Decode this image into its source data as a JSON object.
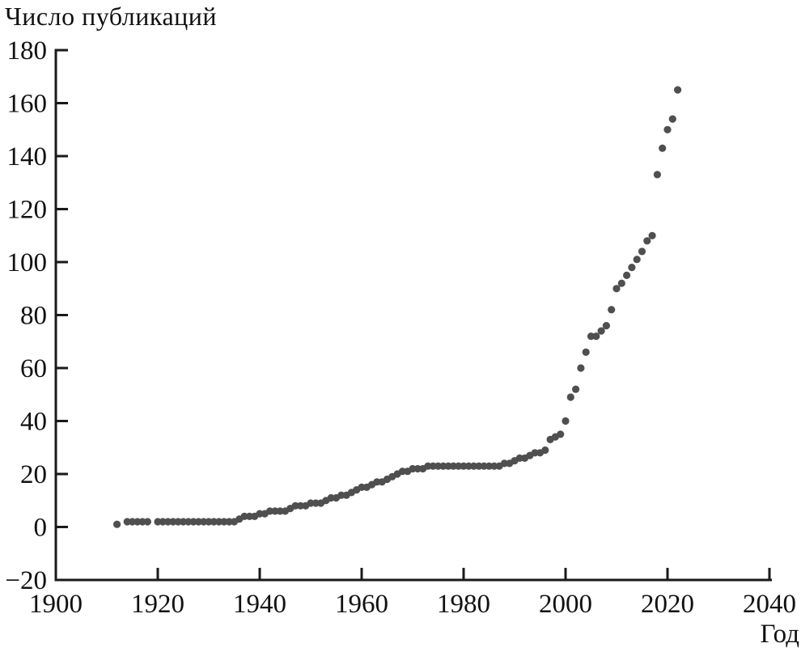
{
  "page": {
    "background": "#ffffff"
  },
  "chart_data": {
    "type": "scatter",
    "title": "Число публикаций",
    "xlabel": "Год",
    "ylabel": "Число публикаций",
    "xlim": [
      1900,
      2040
    ],
    "ylim": [
      -20,
      180
    ],
    "x_ticks": [
      1900,
      1920,
      1940,
      1960,
      1980,
      2000,
      2020,
      2040
    ],
    "y_ticks": [
      -20,
      0,
      20,
      40,
      60,
      80,
      100,
      120,
      140,
      160,
      180
    ],
    "grid": false,
    "legend": null,
    "marker_color": "#4f4f4f",
    "axis_color": "#1a1a1a",
    "points": [
      [
        1912,
        1
      ],
      [
        1914,
        2
      ],
      [
        1915,
        2
      ],
      [
        1916,
        2
      ],
      [
        1917,
        2
      ],
      [
        1918,
        2
      ],
      [
        1920,
        2
      ],
      [
        1921,
        2
      ],
      [
        1922,
        2
      ],
      [
        1923,
        2
      ],
      [
        1924,
        2
      ],
      [
        1925,
        2
      ],
      [
        1926,
        2
      ],
      [
        1927,
        2
      ],
      [
        1928,
        2
      ],
      [
        1929,
        2
      ],
      [
        1930,
        2
      ],
      [
        1931,
        2
      ],
      [
        1932,
        2
      ],
      [
        1933,
        2
      ],
      [
        1934,
        2
      ],
      [
        1935,
        2
      ],
      [
        1936,
        3
      ],
      [
        1937,
        4
      ],
      [
        1938,
        4
      ],
      [
        1939,
        4
      ],
      [
        1940,
        5
      ],
      [
        1941,
        5
      ],
      [
        1942,
        6
      ],
      [
        1943,
        6
      ],
      [
        1944,
        6
      ],
      [
        1945,
        6
      ],
      [
        1946,
        7
      ],
      [
        1947,
        8
      ],
      [
        1948,
        8
      ],
      [
        1949,
        8
      ],
      [
        1950,
        9
      ],
      [
        1951,
        9
      ],
      [
        1952,
        9
      ],
      [
        1953,
        10
      ],
      [
        1954,
        11
      ],
      [
        1955,
        11
      ],
      [
        1956,
        12
      ],
      [
        1957,
        12
      ],
      [
        1958,
        13
      ],
      [
        1959,
        14
      ],
      [
        1960,
        15
      ],
      [
        1961,
        15
      ],
      [
        1962,
        16
      ],
      [
        1963,
        17
      ],
      [
        1964,
        17
      ],
      [
        1965,
        18
      ],
      [
        1966,
        19
      ],
      [
        1967,
        20
      ],
      [
        1968,
        21
      ],
      [
        1969,
        21
      ],
      [
        1970,
        22
      ],
      [
        1971,
        22
      ],
      [
        1972,
        22
      ],
      [
        1973,
        23
      ],
      [
        1974,
        23
      ],
      [
        1975,
        23
      ],
      [
        1976,
        23
      ],
      [
        1977,
        23
      ],
      [
        1978,
        23
      ],
      [
        1979,
        23
      ],
      [
        1980,
        23
      ],
      [
        1981,
        23
      ],
      [
        1982,
        23
      ],
      [
        1983,
        23
      ],
      [
        1984,
        23
      ],
      [
        1985,
        23
      ],
      [
        1986,
        23
      ],
      [
        1987,
        23
      ],
      [
        1988,
        24
      ],
      [
        1989,
        24
      ],
      [
        1990,
        25
      ],
      [
        1991,
        26
      ],
      [
        1992,
        26
      ],
      [
        1993,
        27
      ],
      [
        1994,
        28
      ],
      [
        1995,
        28
      ],
      [
        1996,
        29
      ],
      [
        1997,
        33
      ],
      [
        1998,
        34
      ],
      [
        1999,
        35
      ],
      [
        2000,
        40
      ],
      [
        2001,
        49
      ],
      [
        2002,
        52
      ],
      [
        2003,
        60
      ],
      [
        2004,
        66
      ],
      [
        2005,
        72
      ],
      [
        2006,
        72
      ],
      [
        2007,
        74
      ],
      [
        2008,
        76
      ],
      [
        2009,
        82
      ],
      [
        2010,
        90
      ],
      [
        2011,
        92
      ],
      [
        2012,
        95
      ],
      [
        2013,
        98
      ],
      [
        2014,
        101
      ],
      [
        2015,
        104
      ],
      [
        2016,
        108
      ],
      [
        2017,
        110
      ],
      [
        2018,
        133
      ],
      [
        2019,
        143
      ],
      [
        2020,
        150
      ],
      [
        2021,
        154
      ],
      [
        2022,
        165
      ]
    ]
  }
}
